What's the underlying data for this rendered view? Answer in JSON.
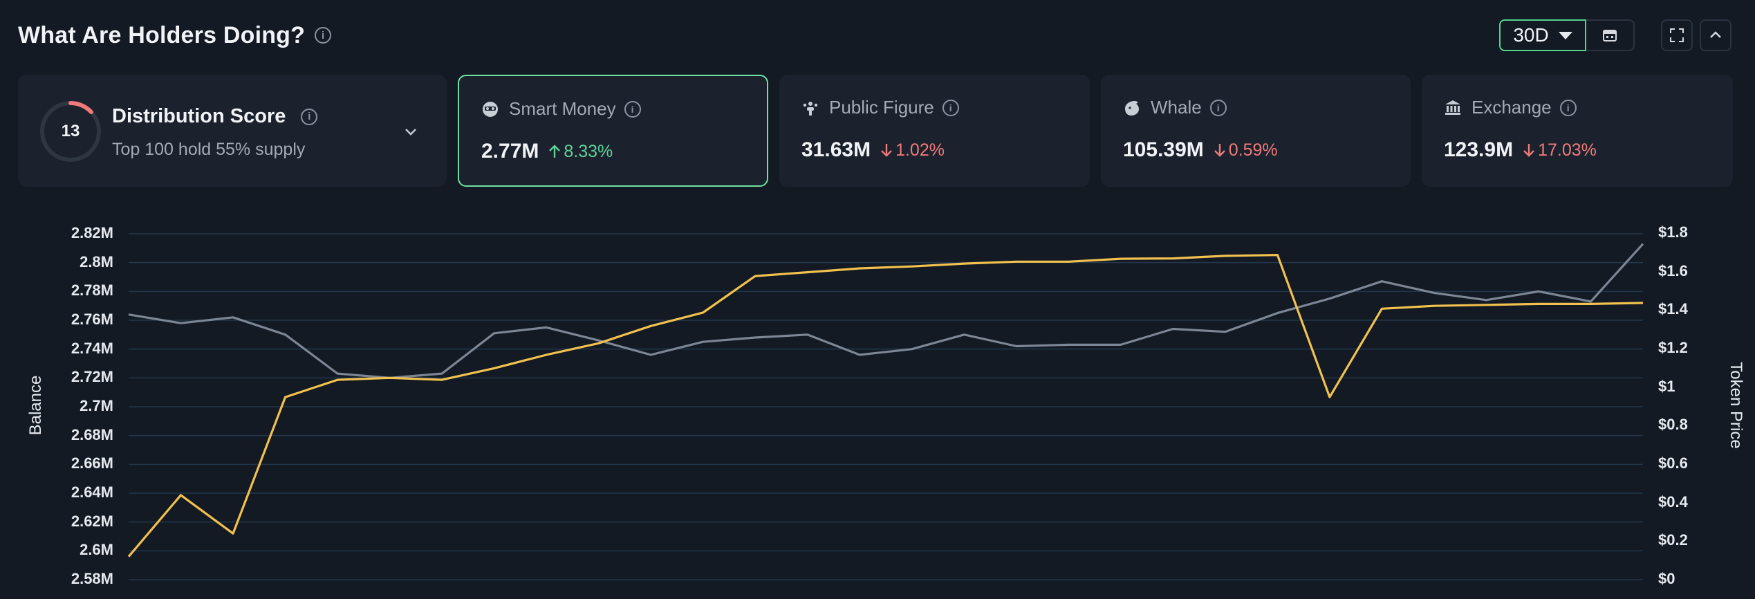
{
  "header": {
    "title": "What Are Holders Doing?"
  },
  "controls": {
    "range": "30D"
  },
  "distribution": {
    "score": "13",
    "score_fraction": 0.13,
    "title": "Distribution Score",
    "subtitle": "Top 100 hold 55% supply"
  },
  "cards": [
    {
      "label": "Smart Money",
      "value": "2.77M",
      "change": "8.33%",
      "direction": "up",
      "icon": "smart-money-icon"
    },
    {
      "label": "Public Figure",
      "value": "31.63M",
      "change": "1.02%",
      "direction": "down",
      "icon": "public-figure-icon"
    },
    {
      "label": "Whale",
      "value": "105.39M",
      "change": "0.59%",
      "direction": "down",
      "icon": "whale-icon"
    },
    {
      "label": "Exchange",
      "value": "123.9M",
      "change": "17.03%",
      "direction": "down",
      "icon": "exchange-icon"
    }
  ],
  "colors": {
    "accent": "#4fd38a",
    "up": "#5fd49a",
    "down": "#f07a7a",
    "balance_line": "#7c8694",
    "price_line": "#f2c14e"
  },
  "chart_data": {
    "type": "line",
    "left_axis_label": "Balance",
    "right_axis_label": "Token Price",
    "left_ticks": [
      "2.82M",
      "2.8M",
      "2.78M",
      "2.76M",
      "2.74M",
      "2.72M",
      "2.7M",
      "2.68M",
      "2.66M",
      "2.64M",
      "2.62M",
      "2.6M",
      "2.58M"
    ],
    "right_ticks": [
      "$1.8",
      "$1.6",
      "$1.4",
      "$1.2",
      "$1",
      "$0.8",
      "$0.6",
      "$0.4",
      "$0.2",
      "$0"
    ],
    "left_range": [
      2.58,
      2.82
    ],
    "right_range": [
      0,
      1.8
    ],
    "grid": true,
    "series": [
      {
        "axis": "left",
        "values": [
          2.764,
          2.758,
          2.762,
          2.75,
          2.723,
          2.72,
          2.723,
          2.751,
          2.755,
          2.746,
          2.736,
          2.745,
          2.748,
          2.75,
          2.736,
          2.74,
          2.75,
          2.742,
          2.743,
          2.743,
          2.754,
          2.752,
          2.765,
          2.775,
          2.787,
          2.779,
          2.774,
          2.78,
          2.773,
          2.813
        ]
      },
      {
        "axis": "right",
        "values": [
          0.12,
          0.44,
          0.24,
          0.95,
          1.04,
          1.05,
          1.04,
          1.1,
          1.17,
          1.23,
          1.32,
          1.39,
          1.58,
          1.6,
          1.62,
          1.63,
          1.645,
          1.655,
          1.655,
          1.67,
          1.672,
          1.685,
          1.69,
          0.95,
          1.41,
          1.425,
          1.43,
          1.435,
          1.435,
          1.44
        ]
      }
    ]
  }
}
